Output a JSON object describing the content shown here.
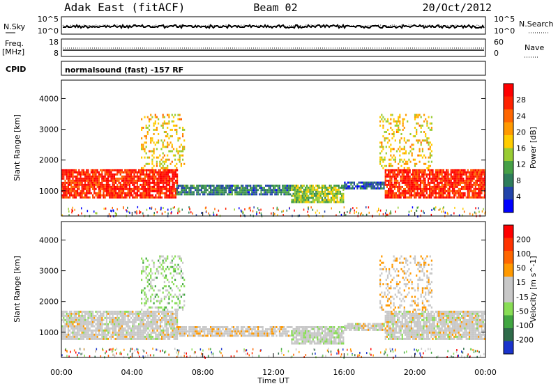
{
  "header": {
    "station": "Adak East (fitACF)",
    "beam": "Beam 02",
    "date": "20/Oct/2012"
  },
  "strip_panels": {
    "nsky": {
      "left_label": "N.Sky",
      "right_label": "N.Search",
      "left_ticks": [
        "10^5",
        "10^0"
      ],
      "right_ticks": [
        "10^5",
        "10^0"
      ]
    },
    "freq": {
      "left_label": "Freq.",
      "left_unit": "[MHz]",
      "right_label": "Nave",
      "left_ticks": [
        "18",
        "8"
      ],
      "right_ticks": [
        "60",
        "0"
      ]
    },
    "cpid": {
      "label": "CPID",
      "text": "normalsound (fast) -157 RF"
    }
  },
  "colors": {
    "power_scale": [
      "#0000ff",
      "#2244aa",
      "#2e7d5b",
      "#46a046",
      "#99cc33",
      "#ffcc00",
      "#ff9900",
      "#ff6600",
      "#ff2200",
      "#ff0000"
    ],
    "velocity_scale": [
      "#1a33cc",
      "#2f6b4a",
      "#41a641",
      "#88dd55",
      "#c8c8c8",
      "#c8c8c8",
      "#ff9900",
      "#ff6600",
      "#ff3300",
      "#ff0000"
    ]
  },
  "chart_data": [
    {
      "type": "heatmap",
      "title": "",
      "ylabel": "Slant Range [km]",
      "xlabel": "",
      "ylim": [
        180,
        4600
      ],
      "xlim": [
        "00:00",
        "24:00"
      ],
      "yticks": [
        1000,
        2000,
        3000,
        4000
      ],
      "xticks": [
        "00:00",
        "04:00",
        "08:00",
        "12:00",
        "16:00",
        "20:00",
        "00:00"
      ],
      "colorbar": {
        "label": "Power [dB]",
        "range": [
          0,
          32
        ],
        "ticks": [
          "28",
          "24",
          "20",
          "16",
          "12",
          "8",
          "4"
        ]
      },
      "regions": [
        {
          "t_start": 0.0,
          "t_end": 6.6,
          "range_low": 750,
          "range_high": 1700,
          "value": 28
        },
        {
          "t_start": 4.5,
          "t_end": 7.0,
          "range_low": 1700,
          "range_high": 3500,
          "value": 18
        },
        {
          "t_start": 6.5,
          "t_end": 13.0,
          "range_low": 850,
          "range_high": 1200,
          "value": 8
        },
        {
          "t_start": 13.0,
          "t_end": 16.0,
          "range_low": 600,
          "range_high": 1200,
          "value": 14
        },
        {
          "t_start": 16.0,
          "t_end": 18.3,
          "range_low": 1050,
          "range_high": 1300,
          "value": 6
        },
        {
          "t_start": 18.3,
          "t_end": 24.0,
          "range_low": 750,
          "range_high": 1700,
          "value": 28
        },
        {
          "t_start": 18.0,
          "t_end": 21.0,
          "range_low": 1700,
          "range_high": 3500,
          "value": 18
        }
      ]
    },
    {
      "type": "heatmap",
      "title": "",
      "ylabel": "Slant Range [km]",
      "xlabel": "Time UT",
      "ylim": [
        180,
        4600
      ],
      "xlim": [
        "00:00",
        "24:00"
      ],
      "yticks": [
        1000,
        2000,
        3000,
        4000
      ],
      "xticks": [
        "00:00",
        "04:00",
        "08:00",
        "12:00",
        "16:00",
        "20:00",
        "00:00"
      ],
      "colorbar": {
        "label": "Velocity [m s^-1]",
        "range": [
          -250,
          250
        ],
        "ticks": [
          "200",
          "100",
          "50",
          "15",
          "-15",
          "-50",
          "-100",
          "-200"
        ]
      },
      "regions": [
        {
          "t_start": 0.0,
          "t_end": 6.6,
          "range_low": 750,
          "range_high": 1700,
          "value": 0
        },
        {
          "t_start": 4.5,
          "t_end": 7.0,
          "range_low": 1700,
          "range_high": 3500,
          "value": -60
        },
        {
          "t_start": 6.5,
          "t_end": 13.0,
          "range_low": 850,
          "range_high": 1200,
          "value": 20
        },
        {
          "t_start": 13.0,
          "t_end": 16.0,
          "range_low": 600,
          "range_high": 1200,
          "value": -20
        },
        {
          "t_start": 16.0,
          "t_end": 18.3,
          "range_low": 1050,
          "range_high": 1300,
          "value": 0
        },
        {
          "t_start": 18.3,
          "t_end": 24.0,
          "range_low": 750,
          "range_high": 1700,
          "value": 0
        },
        {
          "t_start": 18.0,
          "t_end": 21.0,
          "range_low": 1700,
          "range_high": 3500,
          "value": 40
        }
      ]
    }
  ]
}
